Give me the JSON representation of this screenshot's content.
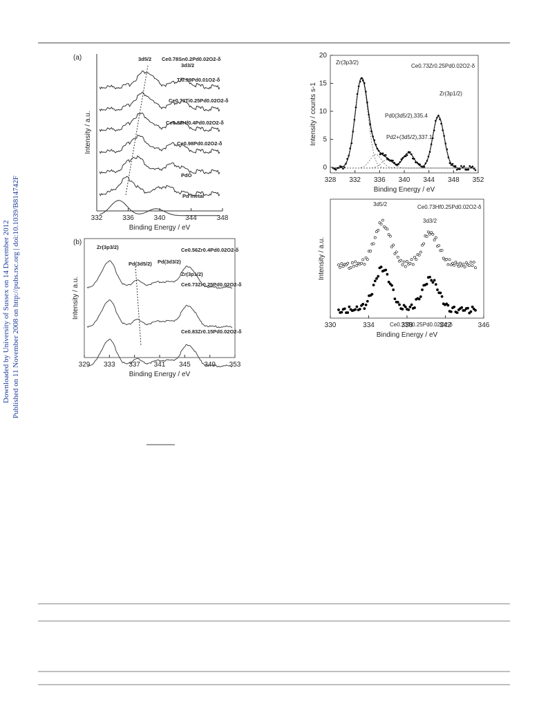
{
  "side_note": {
    "downloaded": "Downloaded by University of Sussex on 14 December 2012",
    "published": "Published on 11 November 2008 on http://pubs.rsc.org | doi:10.1039/B814742F"
  },
  "figures": [
    {
      "panel": "(a)",
      "x_label": "Binding Energy / eV",
      "y_label": "Intensity / a.u.",
      "xlim": [
        332,
        348
      ],
      "xticks": [
        332,
        336,
        340,
        344,
        348
      ],
      "annotations": [
        "3d5/2",
        "3d3/2",
        "Ce0.78Sn0.2Pd0.02O2-δ",
        "Ti0.99Pd0.01O2-δ",
        "Ce0.73Ti0.25Pd0.02O2-δ",
        "Ce0.88Hf0.4Pd0.02O2-δ",
        "Ce0.98Pd0.02O2-δ",
        "PdO",
        "Pd metal"
      ]
    },
    {
      "panel": "(b)",
      "x_label": "Binding Energy / eV",
      "y_label": "Intensity / a.u.",
      "xlim": [
        329,
        353
      ],
      "xticks": [
        329,
        333,
        337,
        341,
        345,
        349,
        353
      ],
      "annotations": [
        "Zr(3p3/2)",
        "Pd(3d5/2)",
        "Pd(3d3/2)",
        "Zr(3p1/2)",
        "Ce0.56Zr0.4Pd0.02O2-δ",
        "Ce0.73Zr0.25Pd0.02O2-δ",
        "Ce0.83Zr0.15Pd0.02O2-δ"
      ]
    },
    {
      "x_label": "Binding Energy / eV",
      "y_label": "Intensity / counts s-1",
      "xlim": [
        328,
        352
      ],
      "xticks": [
        328,
        332,
        336,
        340,
        344,
        348,
        352
      ],
      "ylim": [
        -1,
        20
      ],
      "yticks": [
        0,
        5,
        10,
        15,
        20
      ],
      "annotations": [
        "Zr(3p3/2)",
        "Ce0.73Zr0.25Pd0.02O2-δ",
        "Pd0(3d5/2),335.4",
        "Pd2+(3d5/2),337.1",
        "Zr(3p1/2)"
      ]
    },
    {
      "x_label": "Binding Energy / eV",
      "y_label": "Intensity / a.u.",
      "xlim": [
        330,
        346
      ],
      "xticks": [
        330,
        334,
        338,
        342,
        346
      ],
      "annotations": [
        "3d5/2",
        "3d3/2",
        "Ce0.73Hf0.25Pd0.02O2-δ",
        "Ce0.73Ti0.25Pd0.02O2-δ"
      ]
    }
  ]
}
